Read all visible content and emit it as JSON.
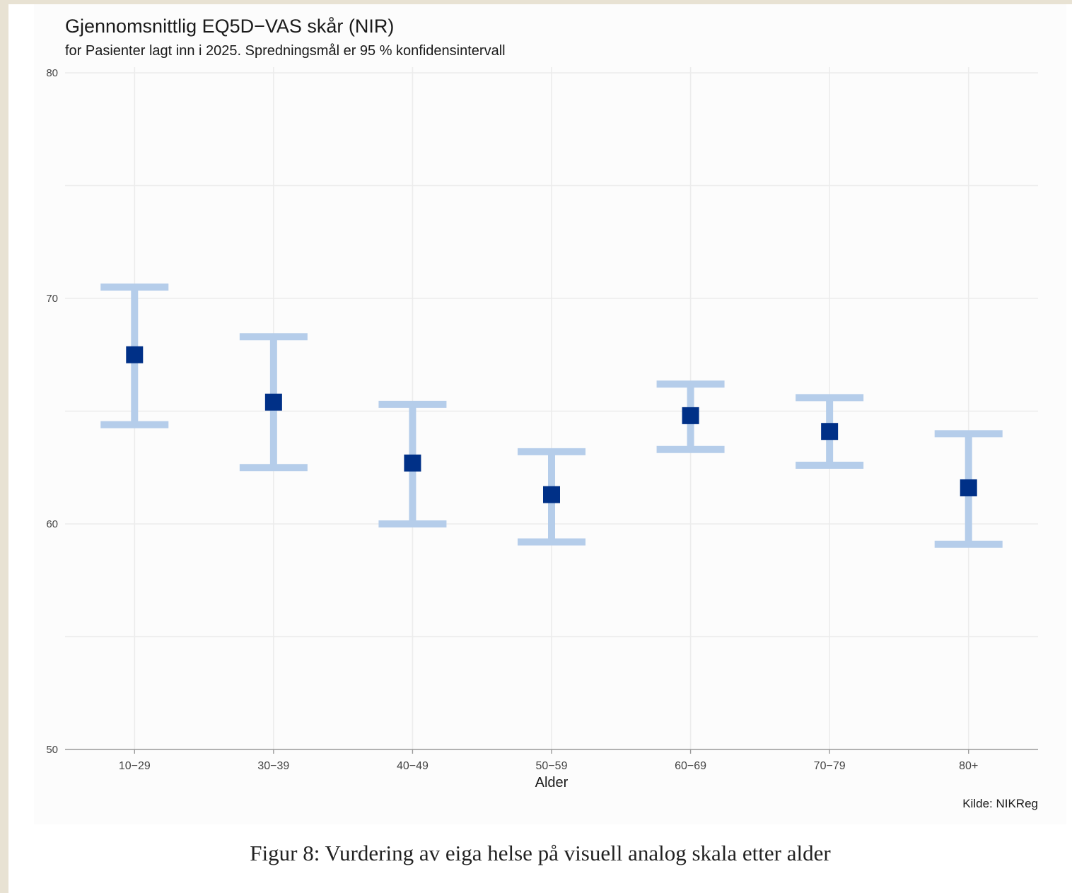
{
  "chart_data": {
    "type": "scatter",
    "title": "Gjennomsnittlig EQ5D−VAS skår (NIR)",
    "subtitle": "for Pasienter lagt inn i 2025. Spredningsmål er 95 % konfidensintervall",
    "xlabel": "Alder",
    "ylabel": "",
    "categories": [
      "10−29",
      "30−39",
      "40−49",
      "50−59",
      "60−69",
      "70−79",
      "80+"
    ],
    "values": [
      67.5,
      65.4,
      62.7,
      61.3,
      64.8,
      64.1,
      61.6
    ],
    "ci_upper": [
      70.5,
      68.3,
      65.3,
      63.2,
      66.2,
      65.6,
      64.0
    ],
    "ci_lower": [
      64.4,
      62.5,
      60.0,
      59.2,
      63.3,
      62.6,
      59.1
    ],
    "ylim": [
      50,
      80
    ],
    "yticks": [
      50,
      60,
      70,
      80
    ],
    "grid": true,
    "source": "Kilde: NIKReg",
    "colors": {
      "point": "#003087",
      "errorbar": "#b5cdea",
      "grid": "#ececec",
      "axis": "#9a9a9a"
    }
  },
  "caption": "Figur 8: Vurdering av eiga helse på visuell analog skala etter alder"
}
